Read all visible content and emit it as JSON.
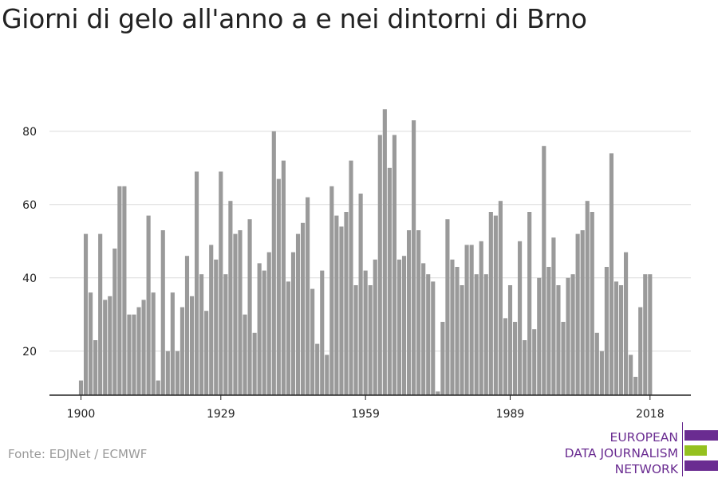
{
  "title": "Giorni di gelo all'anno a e nei dintorni di Brno",
  "source": "Fonte: EDJNet / ECMWF",
  "logo": {
    "lines": [
      "EUROPEAN",
      "DATA JOURNALISM",
      "NETWORK"
    ],
    "colors": {
      "purple": "#6a2c91",
      "green": "#95c11f"
    }
  },
  "chart_data": {
    "type": "bar",
    "title": "Giorni di gelo all'anno a e nei dintorni di Brno",
    "xlabel": "",
    "ylabel": "",
    "x_start": 1900,
    "x_end": 2021,
    "x_ticks": [
      1900,
      1929,
      1959,
      1989,
      2018
    ],
    "y_ticks": [
      20,
      40,
      60,
      80
    ],
    "ylim": [
      8,
      88
    ],
    "grid": true,
    "bar_color": "#9a9a9a",
    "values": [
      12,
      52,
      36,
      23,
      52,
      34,
      35,
      48,
      65,
      65,
      30,
      30,
      32,
      34,
      57,
      36,
      12,
      53,
      20,
      36,
      20,
      32,
      46,
      35,
      69,
      41,
      31,
      49,
      45,
      69,
      41,
      61,
      52,
      53,
      30,
      56,
      25,
      44,
      42,
      47,
      80,
      67,
      72,
      39,
      47,
      52,
      55,
      62,
      37,
      22,
      42,
      19,
      65,
      57,
      54,
      58,
      72,
      38,
      63,
      42,
      38,
      45,
      79,
      86,
      70,
      79,
      45,
      46,
      53,
      83,
      53,
      44,
      41,
      39,
      9,
      28,
      56,
      45,
      43,
      38,
      49,
      49,
      41,
      50,
      41,
      58,
      57,
      61,
      29,
      38,
      28,
      50,
      23,
      58,
      26,
      40,
      76,
      43,
      51,
      38,
      28,
      40,
      41,
      52,
      53,
      61,
      58,
      25,
      20,
      43,
      74,
      39,
      38,
      47,
      19,
      13,
      32,
      41,
      41
    ]
  }
}
